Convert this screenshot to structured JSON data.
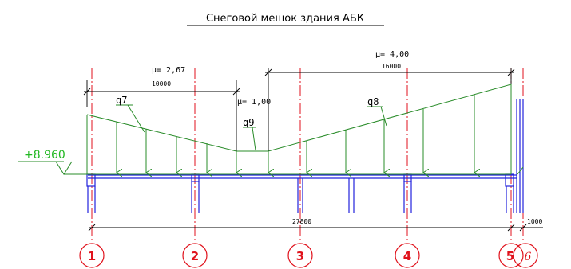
{
  "title": "Снеговой мешок здания АБК",
  "colors": {
    "load": "#2a8c2a",
    "structure": "#2222dd",
    "axis": "#e0121c",
    "dimension": "#000000",
    "elevation": "#22b822"
  },
  "elevation_mark": "+8.960",
  "mu_labels": {
    "left": "μ= 2,67",
    "middle": "μ= 1,00",
    "right": "μ= 4,00"
  },
  "load_labels": {
    "q7": "q7",
    "q8": "q8",
    "q9": "q9"
  },
  "dimensions": {
    "left_span": "10000",
    "right_span": "16000",
    "total_span": "27800",
    "end_span": "1000"
  },
  "axes": [
    "1",
    "2",
    "3",
    "4",
    "5",
    "6"
  ]
}
